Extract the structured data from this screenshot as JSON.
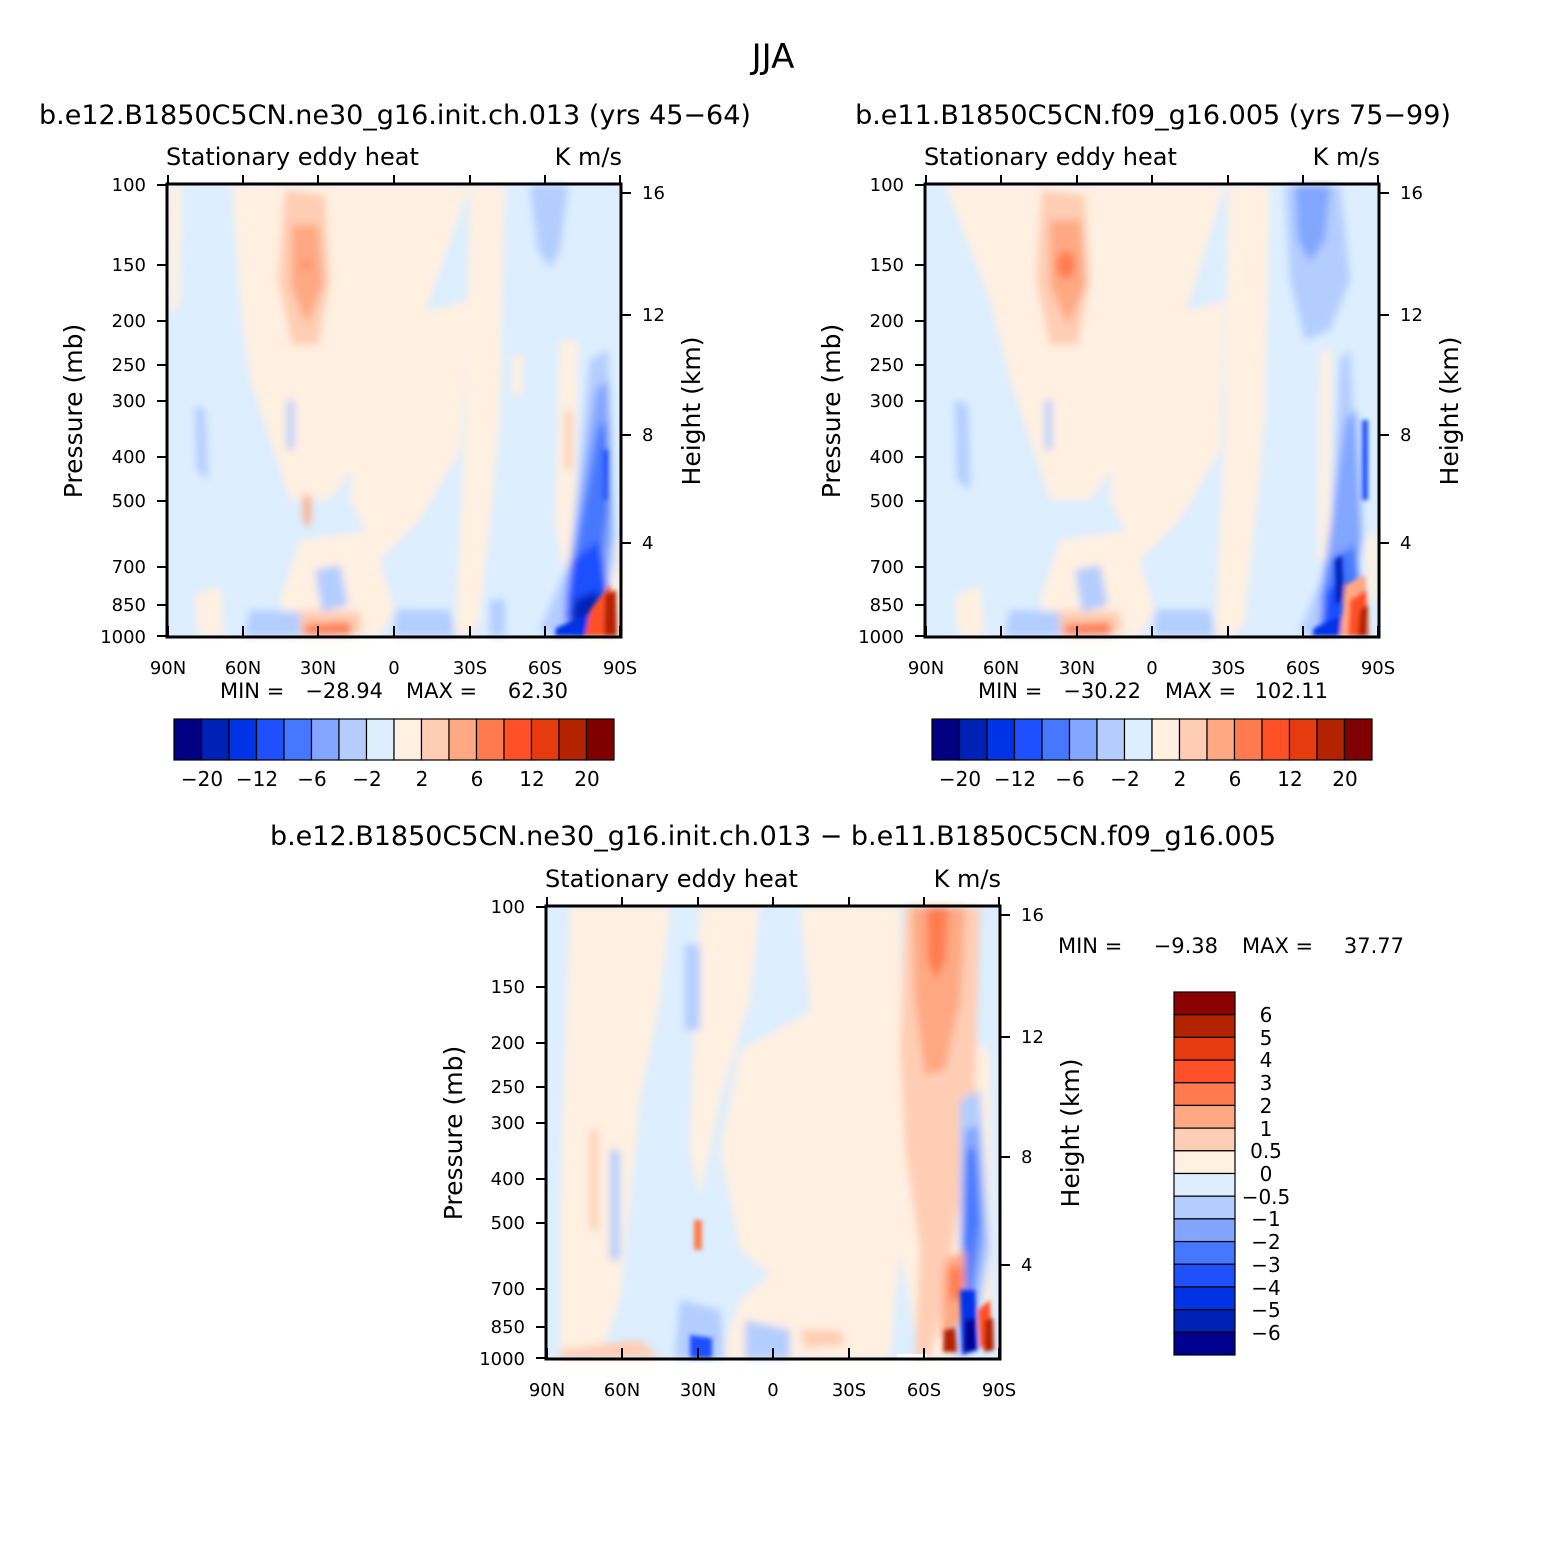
{
  "figure": {
    "title": "JJA"
  },
  "colors": {
    "abs_scale": [
      "#000080",
      "#0021b5",
      "#0032e6",
      "#1e50ff",
      "#4678ff",
      "#82a5ff",
      "#b4cdff",
      "#dceeff",
      "#fff0e1",
      "#ffcdb4",
      "#ffa882",
      "#ff7b4f",
      "#ff5028",
      "#e63a0f",
      "#b42300",
      "#800000"
    ],
    "diff_scale": [
      "#000090",
      "#0021b5",
      "#0032e6",
      "#1e50ff",
      "#4678ff",
      "#82a5ff",
      "#b4cdff",
      "#dceeff",
      "#fff0e1",
      "#ffcdb4",
      "#ffa882",
      "#ff7b4f",
      "#ff5028",
      "#e63a0f",
      "#b42300",
      "#8b0000"
    ]
  },
  "chart_data": [
    {
      "type": "heatmap",
      "title": "b.e12.B1850C5CN.ne30_g16.init.ch.013 (yrs 45−64)",
      "left_subtitle": "Stationary eddy heat",
      "right_subtitle": "K m/s",
      "xlabel": "",
      "ylabel": "Pressure (mb)",
      "ylabel_right": "Height (km)",
      "x_ticks": [
        "90N",
        "60N",
        "30N",
        "0",
        "30S",
        "60S",
        "90S"
      ],
      "y_ticks": [
        "100",
        "150",
        "200",
        "250",
        "300",
        "400",
        "500",
        "700",
        "850",
        "1000"
      ],
      "y_right_ticks": [
        "16",
        "12",
        "8",
        "4"
      ],
      "stats": {
        "min_label": "MIN =",
        "min": "−28.94",
        "max_label": "MAX =",
        "max": "62.30"
      },
      "colorbar": {
        "orientation": "horizontal",
        "labels": [
          "−20",
          "−12",
          "−6",
          "−2",
          "2",
          "6",
          "12",
          "20"
        ]
      }
    },
    {
      "type": "heatmap",
      "title": "b.e11.B1850C5CN.f09_g16.005 (yrs 75−99)",
      "left_subtitle": "Stationary eddy heat",
      "right_subtitle": "K m/s",
      "xlabel": "",
      "ylabel": "Pressure (mb)",
      "ylabel_right": "Height (km)",
      "x_ticks": [
        "90N",
        "60N",
        "30N",
        "0",
        "30S",
        "60S",
        "90S"
      ],
      "y_ticks": [
        "100",
        "150",
        "200",
        "250",
        "300",
        "400",
        "500",
        "700",
        "850",
        "1000"
      ],
      "y_right_ticks": [
        "16",
        "12",
        "8",
        "4"
      ],
      "stats": {
        "min_label": "MIN =",
        "min": "−30.22",
        "max_label": "MAX =",
        "max": "102.11"
      },
      "colorbar": {
        "orientation": "horizontal",
        "labels": [
          "−20",
          "−12",
          "−6",
          "−2",
          "2",
          "6",
          "12",
          "20"
        ]
      }
    },
    {
      "type": "heatmap",
      "title": "b.e12.B1850C5CN.ne30_g16.init.ch.013 − b.e11.B1850C5CN.f09_g16.005",
      "left_subtitle": "Stationary eddy heat",
      "right_subtitle": "K m/s",
      "xlabel": "",
      "ylabel": "Pressure (mb)",
      "ylabel_right": "Height (km)",
      "x_ticks": [
        "90N",
        "60N",
        "30N",
        "0",
        "30S",
        "60S",
        "90S"
      ],
      "y_ticks": [
        "100",
        "150",
        "200",
        "250",
        "300",
        "400",
        "500",
        "700",
        "850",
        "1000"
      ],
      "y_right_ticks": [
        "16",
        "12",
        "8",
        "4"
      ],
      "stats": {
        "min_label": "MIN =",
        "min": "−9.38",
        "max_label": "MAX =",
        "max": "37.77"
      },
      "colorbar": {
        "orientation": "vertical",
        "labels": [
          "6",
          "5",
          "4",
          "3",
          "2",
          "1",
          "0.5",
          "0",
          "−0.5",
          "−1",
          "−2",
          "−3",
          "−4",
          "−5",
          "−6"
        ]
      }
    }
  ]
}
